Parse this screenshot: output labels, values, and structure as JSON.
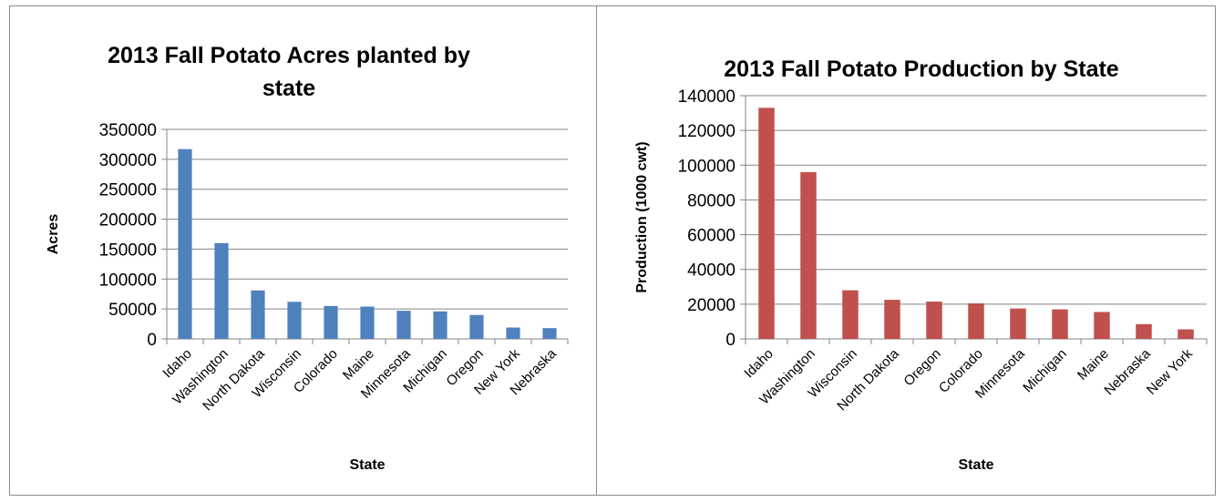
{
  "chart_data": [
    {
      "type": "bar",
      "title_lines": [
        "2013 Fall Potato Acres planted by",
        "state"
      ],
      "xlabel": "State",
      "ylabel": "Acres",
      "ylim": [
        0,
        350000
      ],
      "ytick_step": 50000,
      "grid": true,
      "color": "#4f81bd",
      "categories": [
        "Idaho",
        "Washington",
        "North Dakota",
        "Wisconsin",
        "Colorado",
        "Maine",
        "Minnesota",
        "Michigan",
        "Oregon",
        "New York",
        "Nebraska"
      ],
      "values": [
        317000,
        160000,
        81000,
        62000,
        55000,
        54000,
        47000,
        46000,
        40000,
        19000,
        18000
      ]
    },
    {
      "type": "bar",
      "title_lines": [
        "2013 Fall Potato Production by State"
      ],
      "xlabel": "State",
      "ylabel": "Production (1000 cwt)",
      "ylim": [
        0,
        140000
      ],
      "ytick_step": 20000,
      "grid": true,
      "color": "#c0504d",
      "categories": [
        "Idaho",
        "Washington",
        "Wisconsin",
        "North Dakota",
        "Oregon",
        "Colorado",
        "Minnesota",
        "Michigan",
        "Maine",
        "Nebraska",
        "New York"
      ],
      "values": [
        133000,
        96000,
        28000,
        22500,
        21500,
        20500,
        17500,
        17000,
        15500,
        8500,
        5500
      ]
    }
  ]
}
